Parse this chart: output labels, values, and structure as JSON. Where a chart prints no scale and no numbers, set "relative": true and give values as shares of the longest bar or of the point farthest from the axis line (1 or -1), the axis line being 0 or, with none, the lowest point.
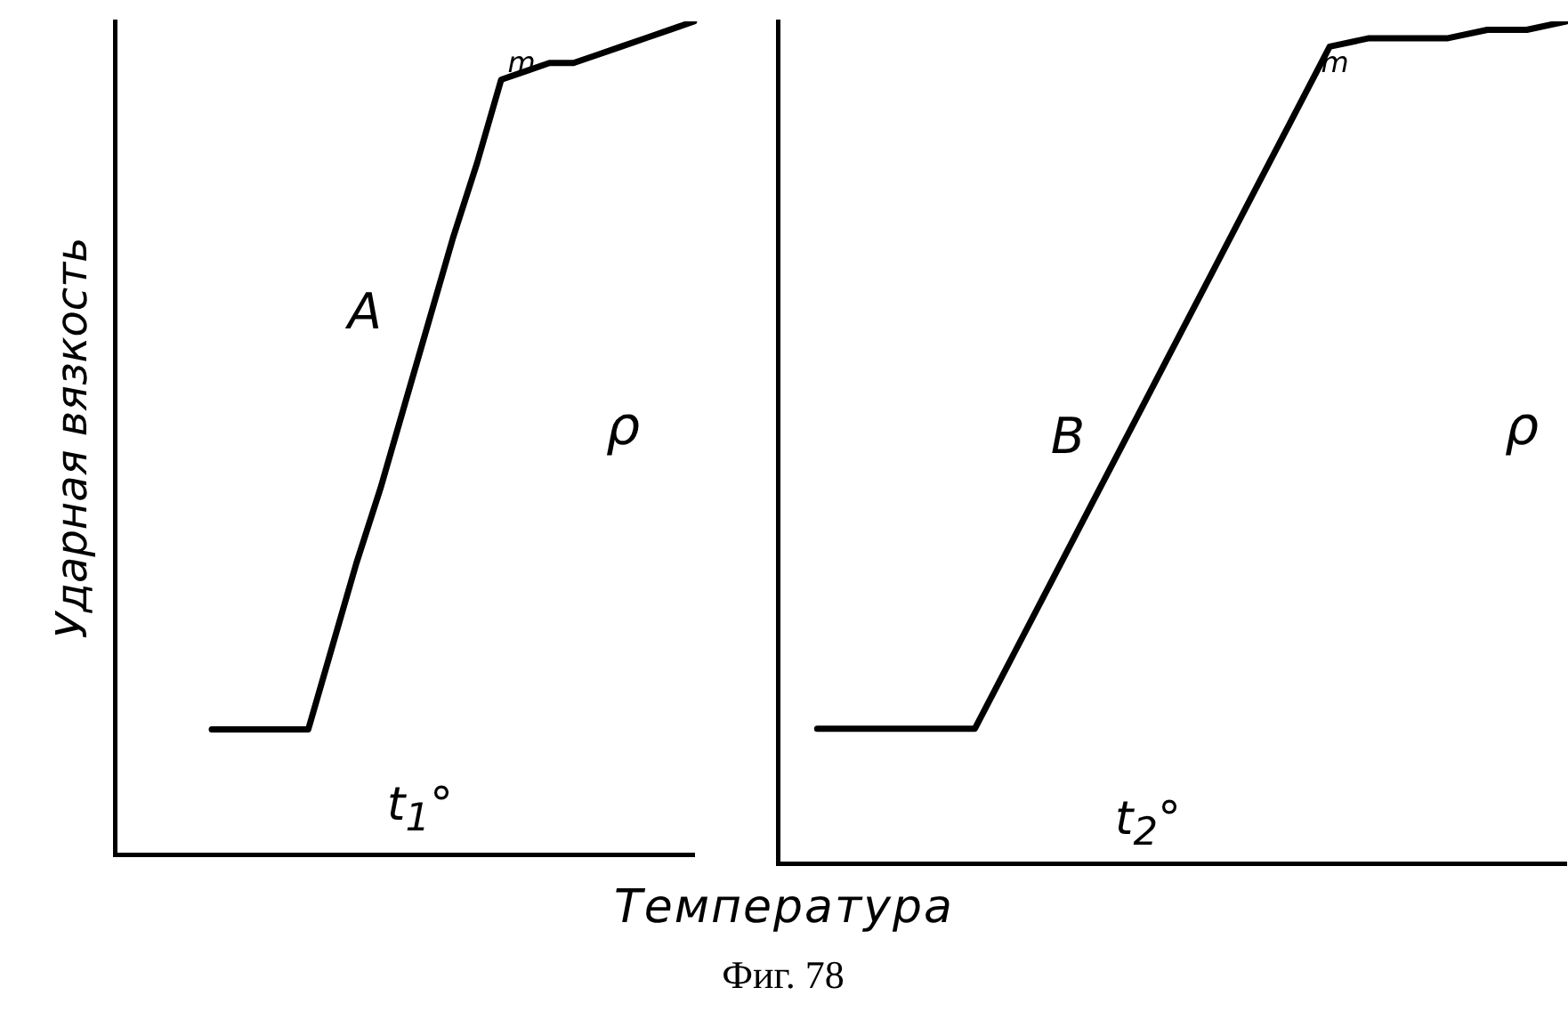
{
  "chart_data": [
    {
      "type": "line",
      "ylabel": "Ударная вязкость",
      "xlabel": "Температура",
      "relative": true,
      "tick_labels": false,
      "grid": false,
      "legend": false,
      "marker": "none",
      "line_style": "solid",
      "annotations": [
        "A",
        "m",
        "ρ",
        "t$_{1}$°",
        "Фиг. 78"
      ],
      "categories": [
        null,
        null,
        null,
        null,
        null,
        null,
        null,
        null,
        null,
        null,
        null,
        null,
        null,
        null,
        null,
        null,
        null,
        null,
        null,
        null,
        null,
        null,
        null,
        null,
        null
      ],
      "series": [
        {
          "color": "#000000",
          "values": [
            null,
            null,
            null,
            null,
            0.15,
            0.15,
            0.15,
            0.15,
            0.15,
            0.25,
            0.35,
            0.44,
            0.54,
            0.64,
            0.74,
            0.83,
            0.93,
            0.94,
            0.95,
            0.95,
            0.96,
            0.97,
            0.98,
            0.99,
            1.0
          ]
        }
      ]
    },
    {
      "type": "line",
      "relative": true,
      "tick_labels": false,
      "grid": false,
      "legend": false,
      "marker": "none",
      "line_style": "solid",
      "annotations": [
        "B",
        "m",
        "ρ",
        "t$_{2}$°"
      ],
      "categories": [
        null,
        null,
        null,
        null,
        null,
        null,
        null,
        null,
        null,
        null,
        null,
        null,
        null,
        null,
        null,
        null,
        null,
        null,
        null,
        null,
        null
      ],
      "series": [
        {
          "color": "#000000",
          "values": [
            null,
            0.16,
            0.16,
            0.16,
            0.16,
            0.16,
            0.25,
            0.34,
            0.43,
            0.52,
            0.61,
            0.7,
            0.79,
            0.88,
            0.97,
            0.98,
            0.98,
            0.98,
            0.99,
            0.99,
            1.0
          ]
        }
      ]
    }
  ]
}
